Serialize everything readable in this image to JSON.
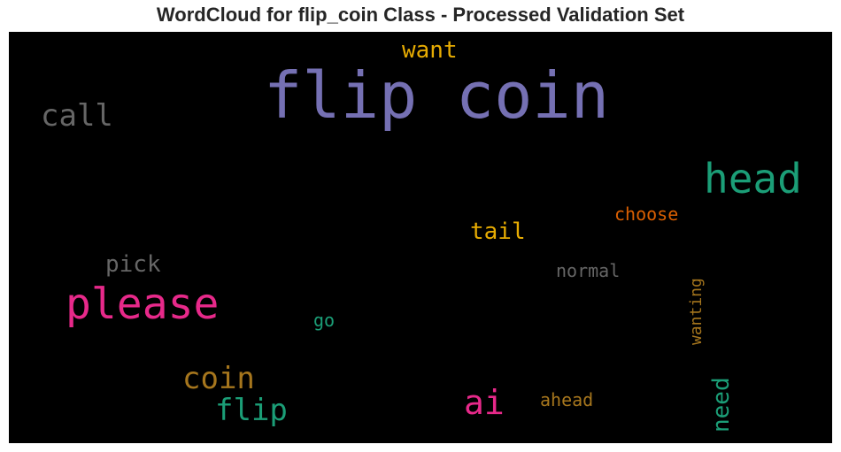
{
  "title": "WordCloud for flip_coin Class - Processed Validation Set",
  "chart_data": {
    "type": "wordcloud",
    "title": "WordCloud for flip_coin Class - Processed Validation Set",
    "background": "#000000",
    "words": [
      {
        "text": "flip coin",
        "color": "#7570b3",
        "orientation": "horizontal"
      },
      {
        "text": "head",
        "color": "#1b9e77",
        "orientation": "horizontal"
      },
      {
        "text": "please",
        "color": "#e7298a",
        "orientation": "horizontal"
      },
      {
        "text": "call",
        "color": "#666666",
        "orientation": "horizontal"
      },
      {
        "text": "coin",
        "color": "#a6761d",
        "orientation": "horizontal"
      },
      {
        "text": "flip",
        "color": "#1b9e77",
        "orientation": "horizontal"
      },
      {
        "text": "ai",
        "color": "#e7298a",
        "orientation": "horizontal"
      },
      {
        "text": "want",
        "color": "#e6ab02",
        "orientation": "horizontal"
      },
      {
        "text": "tail",
        "color": "#e6ab02",
        "orientation": "horizontal"
      },
      {
        "text": "pick",
        "color": "#666666",
        "orientation": "horizontal"
      },
      {
        "text": "need",
        "color": "#1b9e77",
        "orientation": "vertical"
      },
      {
        "text": "choose",
        "color": "#d95f02",
        "orientation": "horizontal"
      },
      {
        "text": "normal",
        "color": "#666666",
        "orientation": "horizontal"
      },
      {
        "text": "wanting",
        "color": "#a6761d",
        "orientation": "vertical"
      },
      {
        "text": "ahead",
        "color": "#a6761d",
        "orientation": "horizontal"
      },
      {
        "text": "go",
        "color": "#1b9e77",
        "orientation": "horizontal"
      }
    ]
  }
}
